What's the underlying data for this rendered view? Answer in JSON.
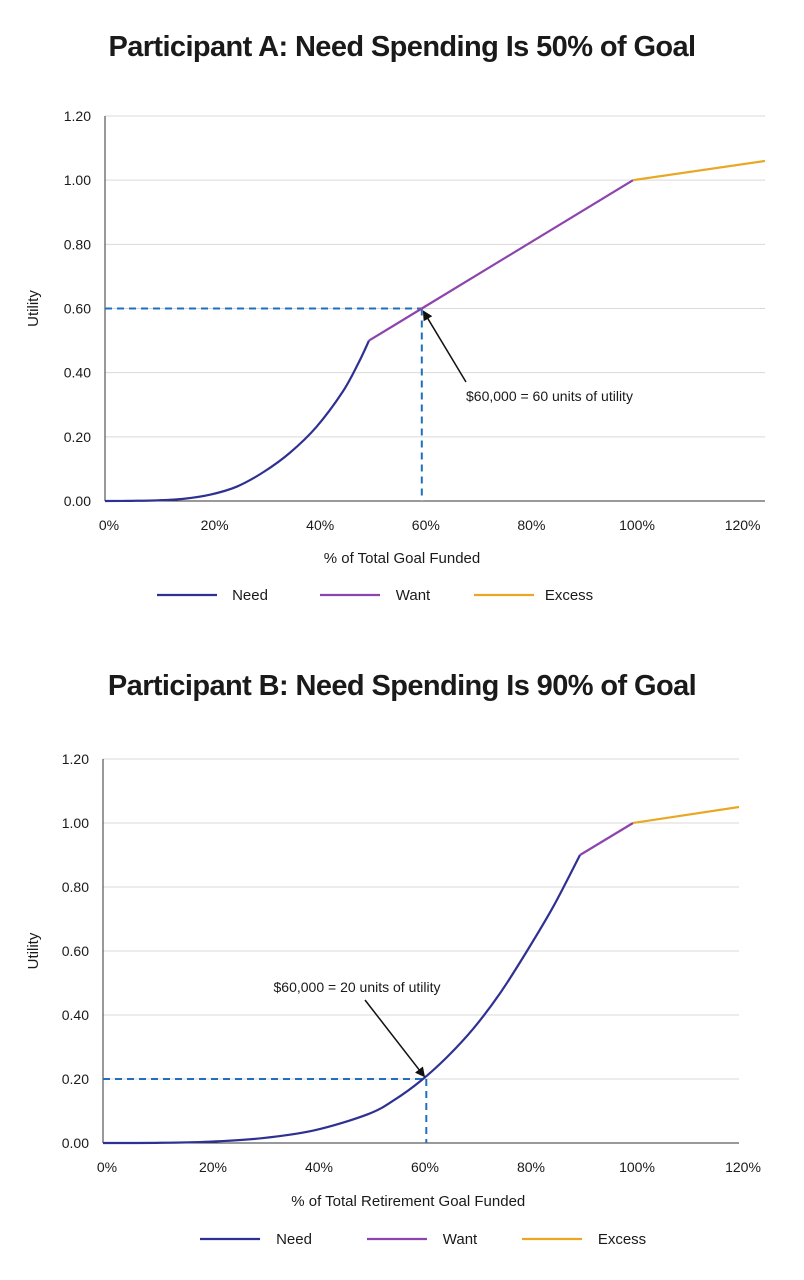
{
  "chart_data": [
    {
      "type": "line",
      "title": "Participant A: Need Spending Is 50% of Goal",
      "xlabel": "% of Total Goal Funded",
      "ylabel": "Utility",
      "xlim": [
        0,
        125
      ],
      "ylim": [
        0,
        1.2
      ],
      "x_ticks": [
        0,
        20,
        40,
        60,
        80,
        100,
        120
      ],
      "x_tick_labels": [
        "0%",
        "20%",
        "40%",
        "60%",
        "80%",
        "100%",
        "120%"
      ],
      "y_ticks": [
        0,
        0.2,
        0.4,
        0.6,
        0.8,
        1.0,
        1.2
      ],
      "y_tick_labels": [
        "0.00",
        "0.20",
        "0.40",
        "0.60",
        "0.80",
        "1.00",
        "1.20"
      ],
      "grid": "horizontal",
      "legend_position": "bottom",
      "colors": {
        "Need": "#2e3192",
        "Want": "#8e44ad",
        "Excess": "#e8a824",
        "guide": "#1f6fbf",
        "grid": "#d9d9d9",
        "axis": "#333333"
      },
      "series": [
        {
          "name": "Need",
          "x": [
            0,
            5,
            10,
            15,
            20,
            25,
            30,
            35,
            40,
            45,
            48,
            50
          ],
          "y": [
            0,
            0.0005,
            0.002,
            0.007,
            0.02,
            0.045,
            0.09,
            0.15,
            0.23,
            0.34,
            0.43,
            0.5
          ]
        },
        {
          "name": "Want",
          "x": [
            50,
            60,
            100
          ],
          "y": [
            0.5,
            0.6,
            1.0
          ]
        },
        {
          "name": "Excess",
          "x": [
            100,
            125
          ],
          "y": [
            1.0,
            1.06
          ]
        }
      ],
      "guides": {
        "x": 60,
        "y": 0.6
      },
      "annotation": {
        "text": "$60,000 = 60 units of utility",
        "target": [
          60,
          0.6
        ],
        "text_at": [
          68,
          0.33
        ]
      }
    },
    {
      "type": "line",
      "title": "Participant B: Need Spending Is 90% of Goal",
      "xlabel": "% of Total Retirement Goal Funded",
      "ylabel": "Utility",
      "xlim": [
        0,
        120
      ],
      "ylim": [
        0,
        1.2
      ],
      "x_ticks": [
        0,
        20,
        40,
        60,
        80,
        100,
        120
      ],
      "x_tick_labels": [
        "0%",
        "20%",
        "40%",
        "60%",
        "80%",
        "100%",
        "120%"
      ],
      "y_ticks": [
        0,
        0.2,
        0.4,
        0.6,
        0.8,
        1.0,
        1.2
      ],
      "y_tick_labels": [
        "0.00",
        "0.20",
        "0.40",
        "0.60",
        "0.80",
        "1.00",
        "1.20"
      ],
      "grid": "horizontal",
      "legend_position": "bottom",
      "colors": {
        "Need": "#2e3192",
        "Want": "#8e44ad",
        "Excess": "#e8a824",
        "guide": "#1f6fbf",
        "grid": "#d9d9d9",
        "axis": "#333333"
      },
      "series": [
        {
          "name": "Need",
          "x": [
            0,
            10,
            20,
            30,
            40,
            50,
            55,
            60,
            65,
            70,
            75,
            80,
            85,
            90
          ],
          "y": [
            0,
            0.0005,
            0.004,
            0.015,
            0.04,
            0.09,
            0.135,
            0.195,
            0.27,
            0.36,
            0.47,
            0.6,
            0.74,
            0.9
          ]
        },
        {
          "name": "Want",
          "x": [
            90,
            100
          ],
          "y": [
            0.9,
            1.0
          ]
        },
        {
          "name": "Excess",
          "x": [
            100,
            120
          ],
          "y": [
            1.0,
            1.05
          ]
        }
      ],
      "guides": {
        "x": 61,
        "y": 0.2
      },
      "annotation": {
        "text": "$60,000 = 20 units of utility",
        "target": [
          61,
          0.2
        ],
        "text_at": [
          40,
          0.8
        ]
      }
    }
  ]
}
